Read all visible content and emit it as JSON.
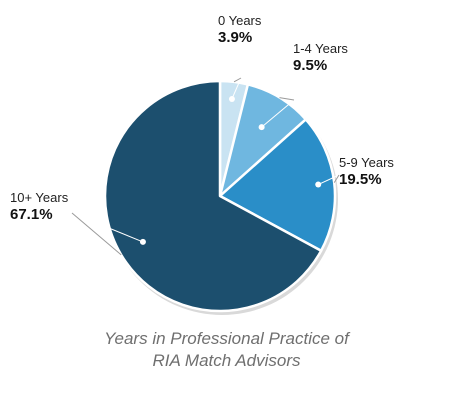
{
  "chart_data": {
    "type": "pie",
    "title": "Years in Professional Practice of RIA Match Advisors",
    "title_lines": [
      "Years in Professional Practice of",
      "RIA Match Advisors"
    ],
    "legend": "none",
    "slices": [
      {
        "label": "0 Years",
        "value": 3.9,
        "display": "3.9%",
        "color": "#c9e3f2"
      },
      {
        "label": "1-4 Years",
        "value": 9.5,
        "display": "9.5%",
        "color": "#6fb7e0"
      },
      {
        "label": "5-9 Years",
        "value": 19.5,
        "display": "19.5%",
        "color": "#2a8ec8"
      },
      {
        "label": "10+ Years",
        "value": 67.1,
        "display": "67.1%",
        "color": "#1c4f6e"
      }
    ]
  }
}
